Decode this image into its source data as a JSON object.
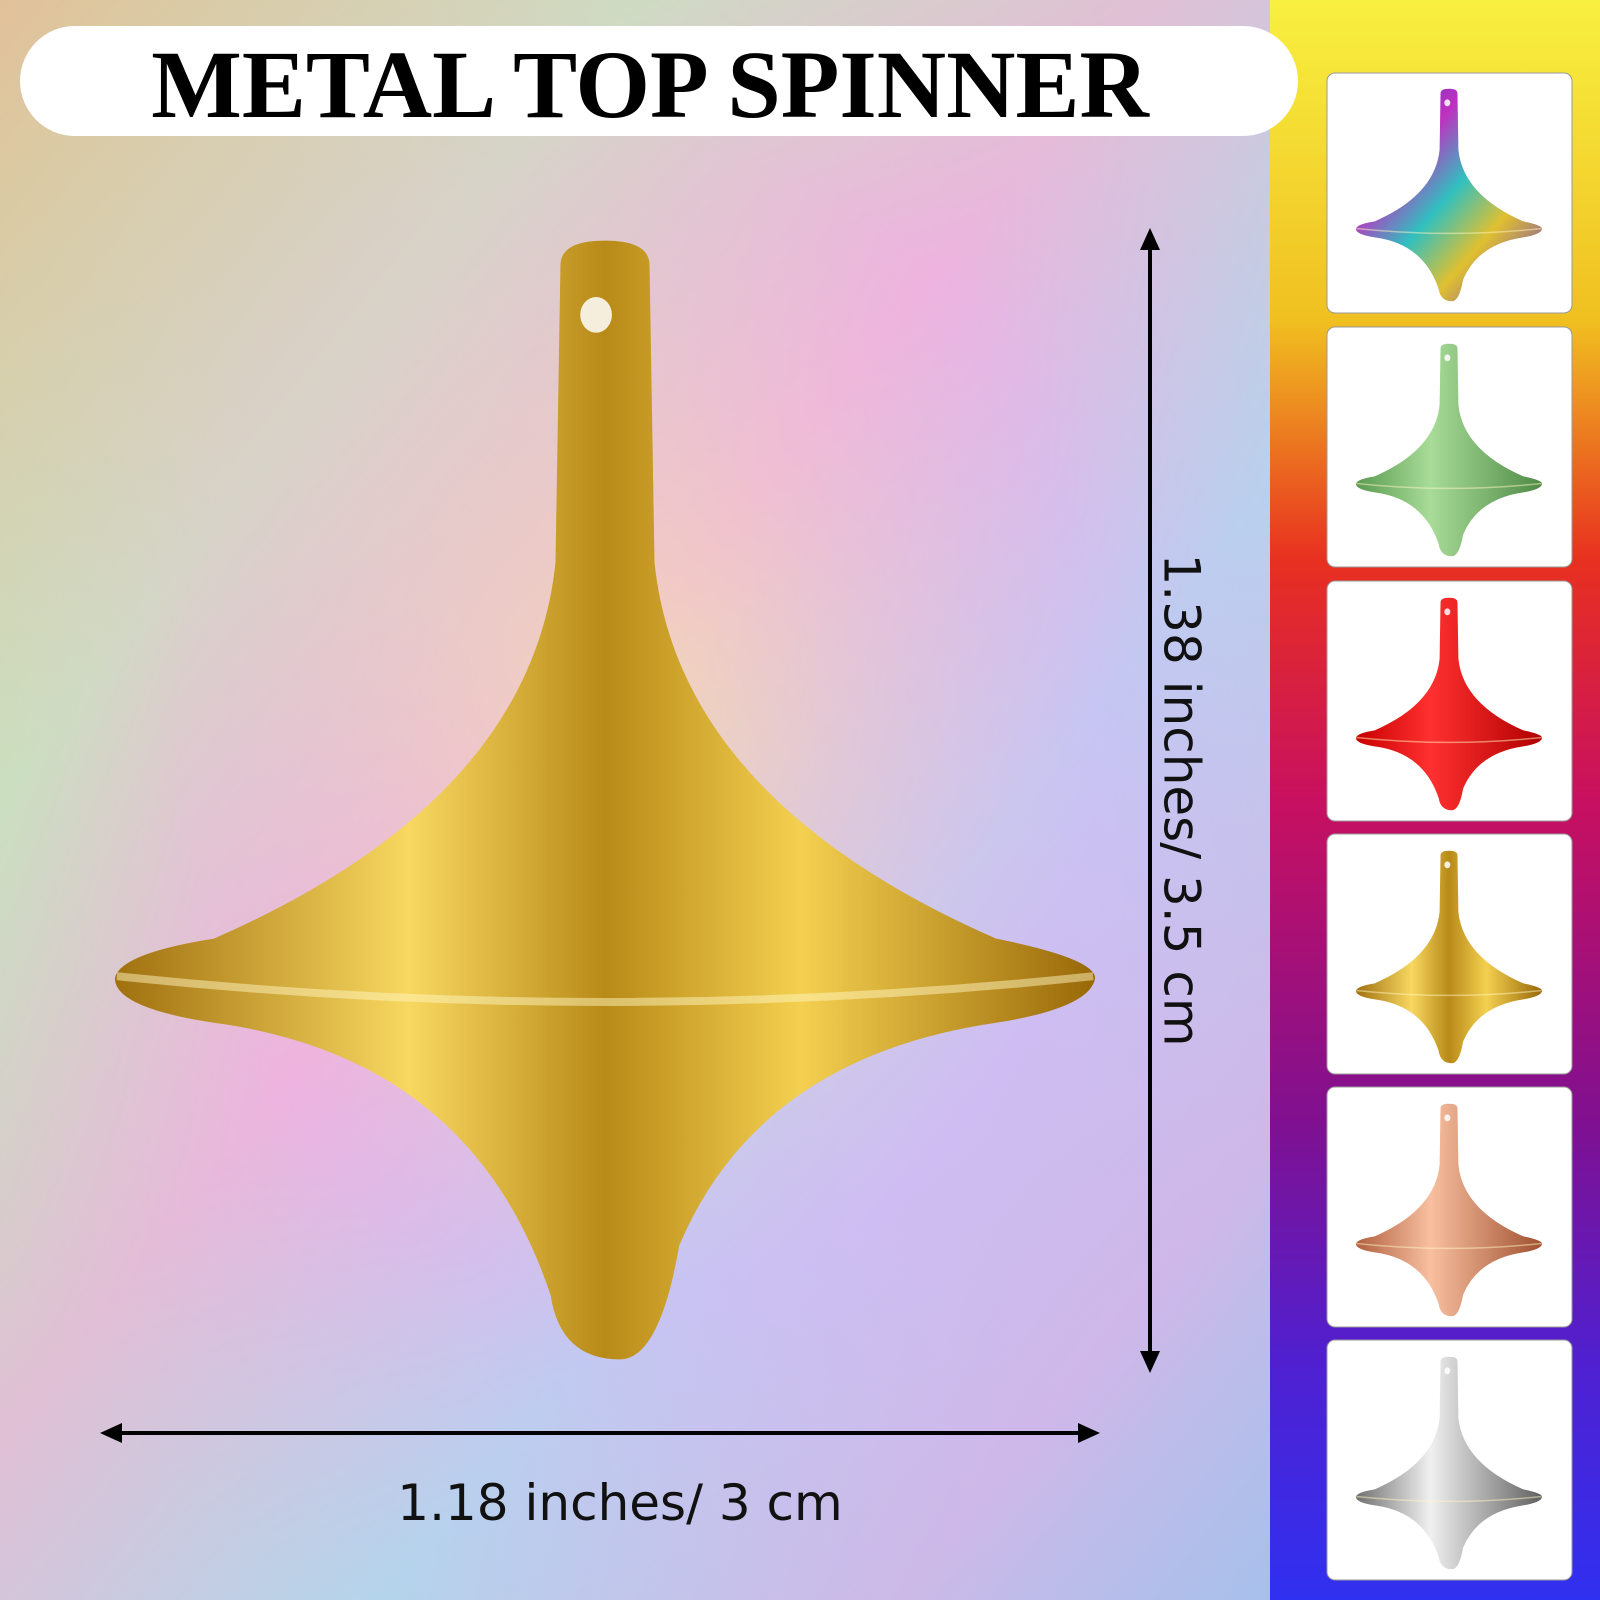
{
  "title": "METAL TOP SPINNER",
  "height_label": "1.38 inches/ 3.5 cm",
  "width_label": "1.18 inches/ 3 cm"
}
